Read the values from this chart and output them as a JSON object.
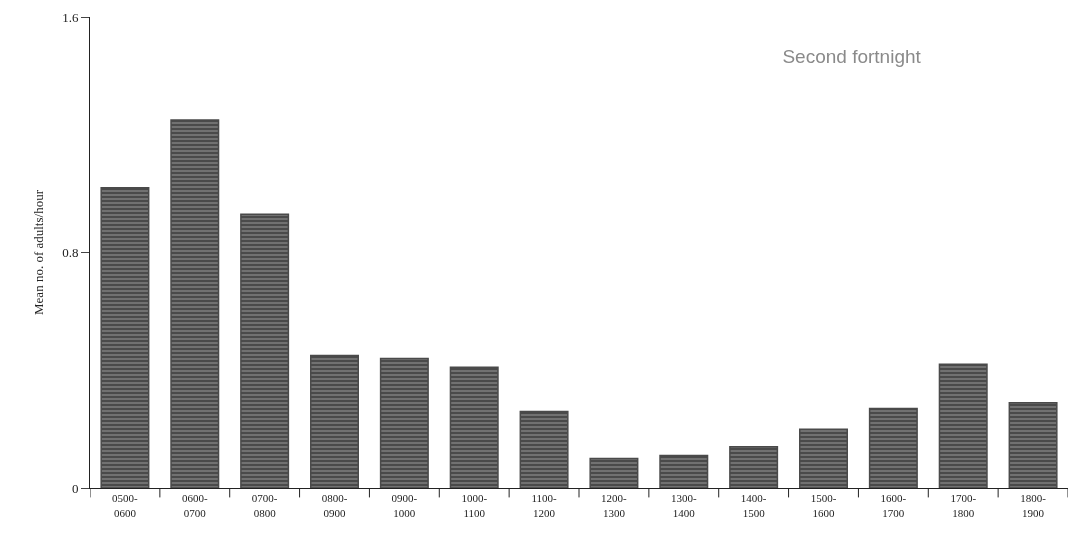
{
  "chart_data": {
    "type": "bar",
    "title": "Second fortnight",
    "ylabel": "Mean no. of adults/hour",
    "categories": [
      "0500-\n0600",
      "0600-\n0700",
      "0700-\n0800",
      "0800-\n0900",
      "0900-\n1000",
      "1000-\n1100",
      "1100-\n1200",
      "1200-\n1300",
      "1300-\n1400",
      "1400-\n1500",
      "1500-\n1600",
      "1600-\n1700",
      "1700-\n1800",
      "1800-\n1900"
    ],
    "values": [
      1.02,
      1.25,
      0.93,
      0.45,
      0.44,
      0.41,
      0.26,
      0.1,
      0.11,
      0.14,
      0.2,
      0.27,
      0.42,
      0.29
    ],
    "color": "#4a4a4a",
    "ylim": [
      0,
      1.6
    ],
    "yticks": [
      0,
      0.8,
      1.6
    ]
  }
}
